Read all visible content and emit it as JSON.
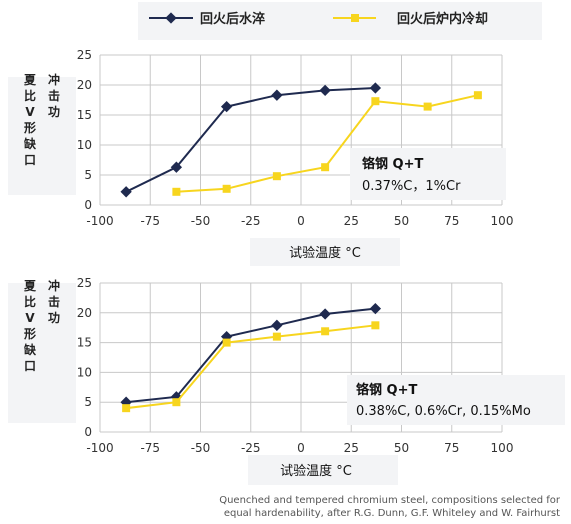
{
  "legend": [
    {
      "label": "回火后水淬",
      "color": "#1f2a4f",
      "marker": "diamond"
    },
    {
      "label": "回火后炉内冷却",
      "color": "#f7d51e",
      "marker": "square"
    }
  ],
  "chart_data": [
    {
      "type": "line",
      "ylabel": "夏比V形缺口冲击功",
      "xlabel": "试验温度 °C",
      "xlim": [
        -100,
        100
      ],
      "ylim": [
        0,
        25
      ],
      "xticks": [
        -100,
        -75,
        -50,
        -25,
        0,
        25,
        50,
        75,
        100
      ],
      "yticks": [
        0,
        5,
        10,
        15,
        20,
        25
      ],
      "grid": true,
      "annotation": {
        "title": "铬钢  Q+T",
        "line": "0.37%C，1%Cr"
      },
      "series": [
        {
          "name": "回火后水淬",
          "color": "#1f2a4f",
          "marker": "diamond",
          "x": [
            -87,
            -62,
            -37,
            -12,
            12,
            37
          ],
          "y": [
            2.2,
            6.3,
            16.4,
            18.3,
            19.1,
            19.5
          ]
        },
        {
          "name": "回火后炉内冷却",
          "color": "#f7d51e",
          "marker": "square",
          "x": [
            -62,
            -37,
            -12,
            12,
            37,
            63,
            88
          ],
          "y": [
            2.2,
            2.7,
            4.8,
            6.3,
            17.3,
            16.4,
            18.3
          ]
        }
      ]
    },
    {
      "type": "line",
      "ylabel": "夏比V形缺口冲击功",
      "xlabel": "试验温度 °C",
      "xlim": [
        -100,
        100
      ],
      "ylim": [
        0,
        25
      ],
      "xticks": [
        -100,
        -75,
        -50,
        -25,
        0,
        25,
        50,
        75,
        100
      ],
      "yticks": [
        0,
        5,
        10,
        15,
        20,
        25
      ],
      "grid": true,
      "annotation": {
        "title": "铬钢  Q+T",
        "line": "0.38%C, 0.6%Cr, 0.15%Mo"
      },
      "series": [
        {
          "name": "回火后水淬",
          "color": "#1f2a4f",
          "marker": "diamond",
          "x": [
            -87,
            -62,
            -37,
            -12,
            12,
            37
          ],
          "y": [
            5.0,
            5.9,
            16.0,
            17.9,
            19.8,
            20.7
          ]
        },
        {
          "name": "回火后炉内冷却",
          "color": "#f7d51e",
          "marker": "square",
          "x": [
            -87,
            -62,
            -37,
            -12,
            12,
            37
          ],
          "y": [
            4.0,
            5.0,
            15.0,
            16.0,
            16.9,
            17.9
          ]
        }
      ]
    }
  ],
  "credit": {
    "line1": "Quenched and tempered chromium steel, compositions selected for",
    "line2": "equal hardenability, after R.G. Dunn, G.F. Whiteley and W. Fairhurst"
  }
}
